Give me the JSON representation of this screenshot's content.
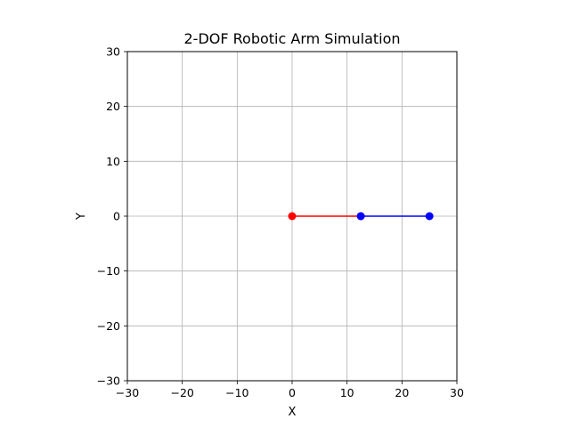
{
  "chart_data": {
    "type": "line",
    "title": "2-DOF Robotic Arm Simulation",
    "xlabel": "X",
    "ylabel": "Y",
    "xlim": [
      -30,
      30
    ],
    "ylim": [
      -30,
      30
    ],
    "xticks": [
      -30,
      -20,
      -10,
      0,
      10,
      20,
      30
    ],
    "yticks": [
      -30,
      -20,
      -10,
      0,
      10,
      20,
      30
    ],
    "xtick_labels": [
      "−30",
      "−20",
      "−10",
      "0",
      "10",
      "20",
      "30"
    ],
    "ytick_labels": [
      "−30",
      "−20",
      "−10",
      "0",
      "10",
      "20",
      "30"
    ],
    "grid": true,
    "aspect": "equal",
    "series": [
      {
        "color": "#ff0000",
        "x": [
          0,
          12.5
        ],
        "y": [
          0,
          0
        ],
        "marker": "circle"
      },
      {
        "color": "#0000ff",
        "x": [
          12.5,
          25
        ],
        "y": [
          0,
          0
        ],
        "marker": "circle"
      }
    ]
  }
}
